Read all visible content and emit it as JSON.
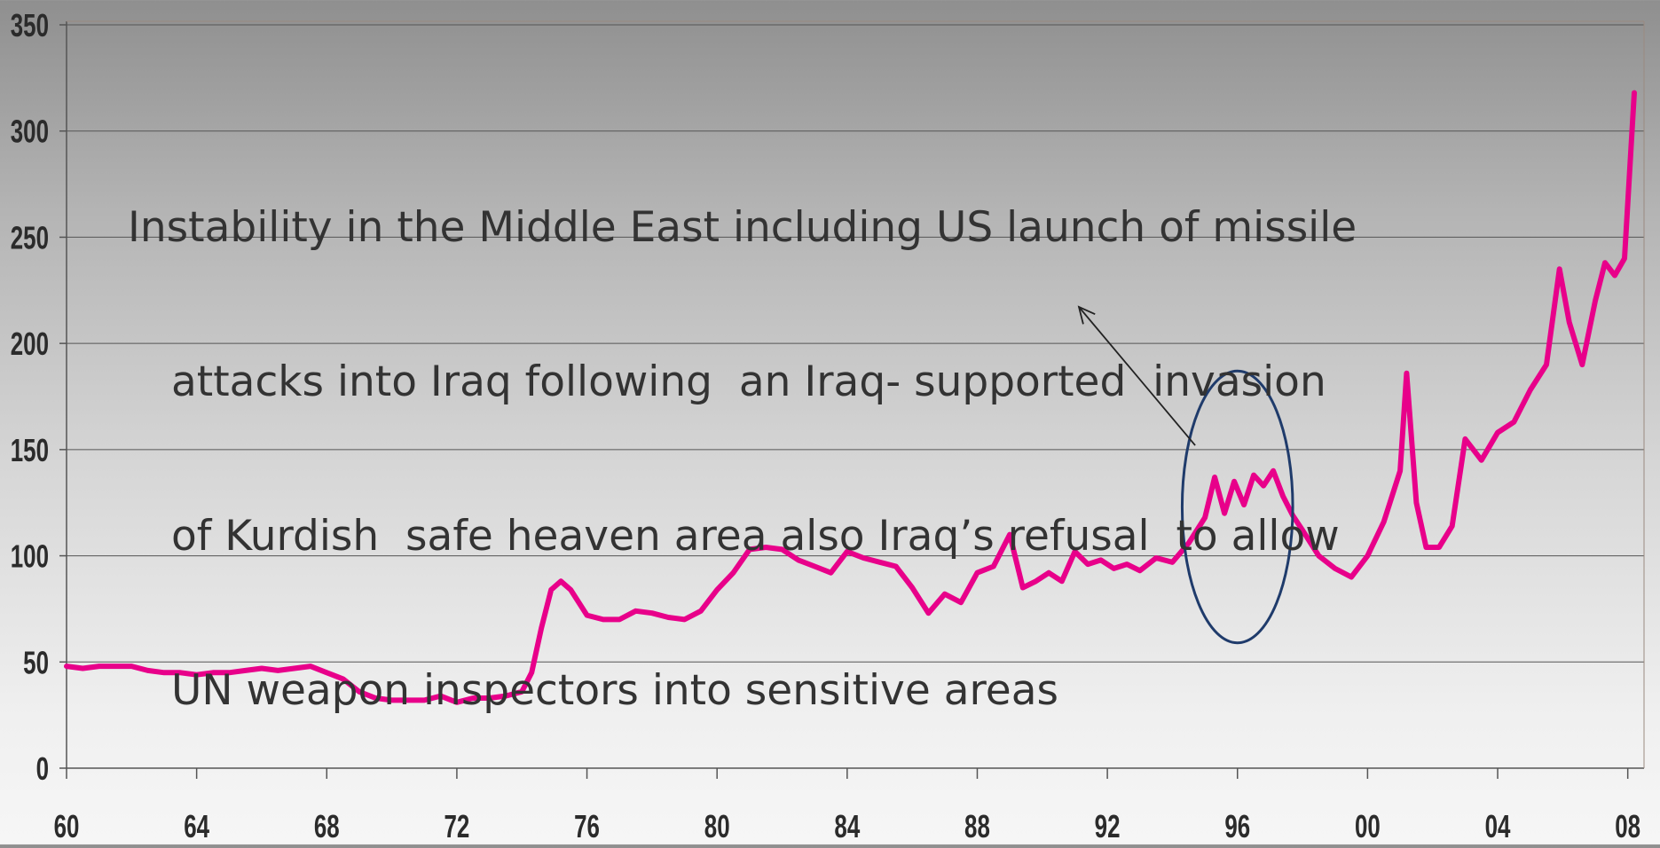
{
  "chart_data": {
    "type": "line",
    "title": "",
    "xlabel": "",
    "ylabel": "",
    "ylim": [
      0,
      350
    ],
    "xlim": [
      1960,
      2008.5
    ],
    "y_ticks": [
      0,
      50,
      100,
      150,
      200,
      250,
      300,
      350
    ],
    "y_tick_labels": [
      "0",
      "50",
      "100",
      "150",
      "200",
      "250",
      "300",
      "350"
    ],
    "x_ticks": [
      1960,
      1964,
      1968,
      1972,
      1976,
      1980,
      1984,
      1988,
      1992,
      1996,
      2000,
      2004,
      2008
    ],
    "x_tick_labels": [
      "60",
      "64",
      "68",
      "72",
      "76",
      "80",
      "84",
      "88",
      "92",
      "96",
      "00",
      "04",
      "08"
    ],
    "grid": "horizontal",
    "line_color": "#e8008a",
    "ellipse_color": "#1f3b6b",
    "series": [
      {
        "x": [
          1960.0,
          1960.5,
          1961.0,
          1961.5,
          1962.0,
          1962.5,
          1963.0,
          1963.5,
          1964.0,
          1964.5,
          1965.0,
          1965.5,
          1966.0,
          1966.5,
          1967.0,
          1967.5,
          1968.0,
          1968.5,
          1969.0,
          1969.5,
          1970.0,
          1970.5,
          1971.0,
          1971.5,
          1972.0,
          1972.5,
          1973.0,
          1973.5,
          1974.0,
          1974.3,
          1974.6,
          1974.9,
          1975.2,
          1975.5,
          1976.0,
          1976.5,
          1977.0,
          1977.5,
          1978.0,
          1978.5,
          1979.0,
          1979.5,
          1980.0,
          1980.5,
          1981.0,
          1981.5,
          1982.0,
          1982.5,
          1983.0,
          1983.5,
          1984.0,
          1984.5,
          1985.0,
          1985.5,
          1986.0,
          1986.5,
          1987.0,
          1987.5,
          1988.0,
          1988.5,
          1989.0,
          1989.4,
          1989.8,
          1990.2,
          1990.6,
          1991.0,
          1991.4,
          1991.8,
          1992.2,
          1992.6,
          1993.0,
          1993.5,
          1994.0,
          1994.5,
          1995.0,
          1995.3,
          1995.6,
          1995.9,
          1996.2,
          1996.5,
          1996.8,
          1997.1,
          1997.4,
          1997.7,
          1998.0,
          1998.5,
          1999.0,
          1999.5,
          2000.0,
          2000.5,
          2001.0,
          2001.2,
          2001.5,
          2001.8,
          2002.2,
          2002.6,
          2003.0,
          2003.5,
          2004.0,
          2004.5,
          2005.0,
          2005.5,
          2005.9,
          2006.2,
          2006.6,
          2007.0,
          2007.3,
          2007.6,
          2007.9,
          2008.2
        ],
        "values": [
          48,
          47,
          48,
          48,
          48,
          46,
          45,
          45,
          44,
          45,
          45,
          46,
          47,
          46,
          47,
          48,
          45,
          42,
          36,
          33,
          32,
          32,
          32,
          34,
          31,
          33,
          33,
          34,
          36,
          45,
          66,
          84,
          88,
          84,
          72,
          70,
          70,
          74,
          73,
          71,
          70,
          74,
          84,
          92,
          103,
          104,
          103,
          98,
          95,
          92,
          102,
          99,
          97,
          95,
          85,
          73,
          82,
          78,
          92,
          95,
          110,
          85,
          88,
          92,
          88,
          102,
          96,
          98,
          94,
          96,
          93,
          99,
          97,
          106,
          118,
          137,
          120,
          135,
          124,
          138,
          133,
          140,
          128,
          119,
          112,
          100,
          94,
          90,
          100,
          116,
          140,
          186,
          125,
          104,
          104,
          114,
          155,
          145,
          158,
          163,
          178,
          190,
          235,
          210,
          190,
          220,
          238,
          232,
          240,
          318
        ]
      }
    ],
    "annotation": {
      "lines": [
        "Instability in the Middle East including US launch of missile",
        "attacks into Iraq following  an Iraq- supported  invasion",
        "of Kurdish  safe heaven area also Iraq’s refusal  to allow",
        "UN weapon inspectors into sensitive areas"
      ]
    }
  }
}
